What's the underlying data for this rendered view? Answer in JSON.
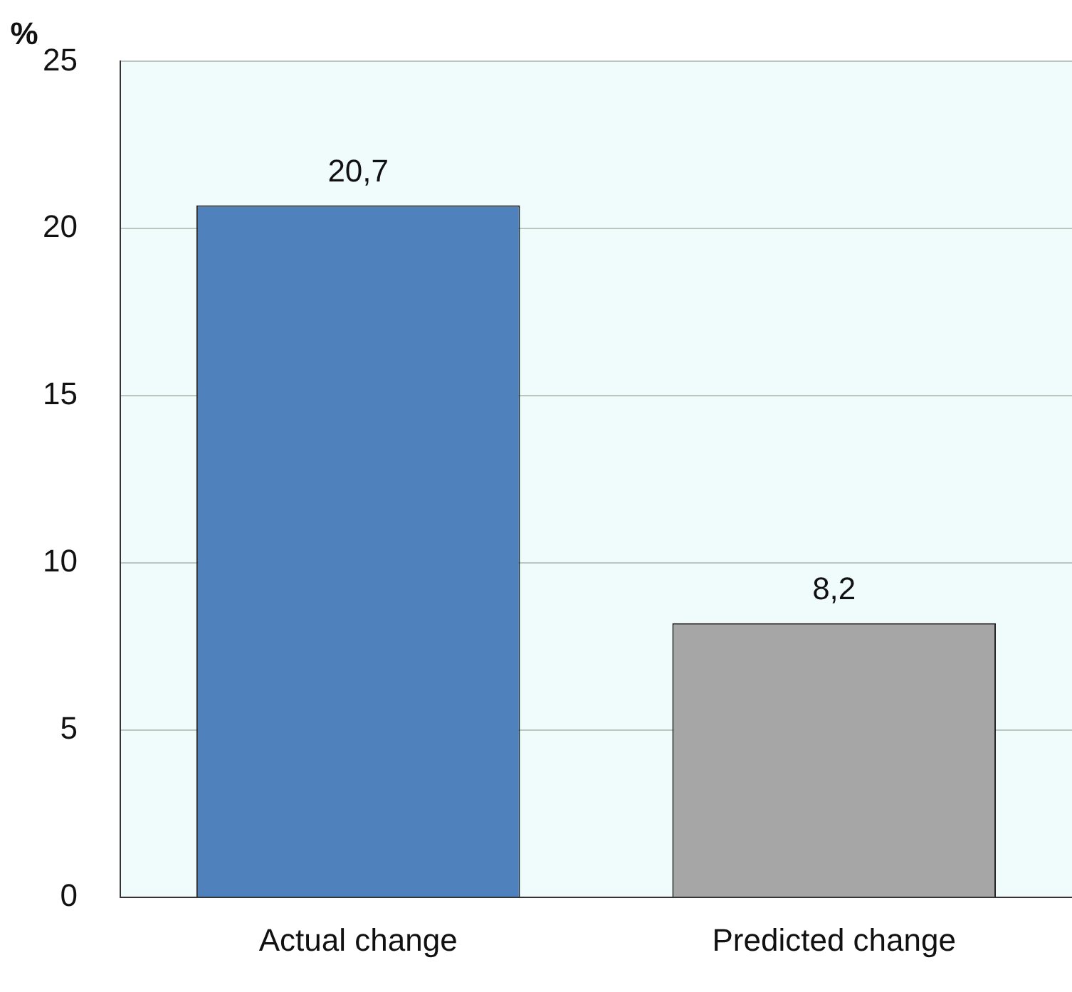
{
  "chart_data": {
    "type": "bar",
    "ylabel": "%",
    "categories": [
      "Actual change",
      "Predicted change"
    ],
    "values": [
      20.7,
      8.2
    ],
    "colors": [
      "#4f81bd",
      "#a6a6a6"
    ],
    "ylim": [
      0,
      25
    ],
    "yticks": [
      0,
      5,
      10,
      15,
      20,
      25
    ],
    "grid": "y",
    "data_labels": true,
    "value_labels": [
      "20,7",
      "8,2"
    ],
    "legend": false
  }
}
